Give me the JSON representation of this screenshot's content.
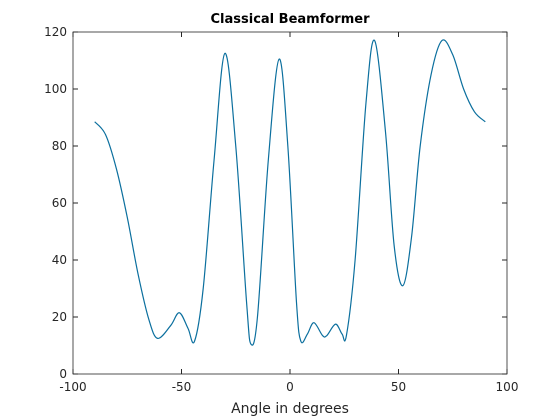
{
  "chart_data": {
    "type": "line",
    "title": "Classical Beamformer",
    "xlabel": "Angle in degrees",
    "x": [
      -90,
      -85,
      -80,
      -75,
      -70,
      -65,
      -61,
      -55,
      -51,
      -47,
      -44,
      -40,
      -35,
      -30,
      -25,
      -20,
      -18,
      -15,
      -10,
      -5,
      -1,
      3,
      5,
      8,
      11,
      15,
      17,
      21,
      24,
      26,
      30,
      35,
      39,
      44,
      48,
      52,
      56,
      60,
      65,
      70,
      75,
      80,
      85,
      90
    ],
    "series": [
      {
        "name": "Classical Beamformer",
        "color": "#0b6f9e",
        "values": [
          88.5,
          84,
          72,
          55,
          35,
          19,
          12.5,
          17,
          21.5,
          16,
          11.5,
          30,
          75,
          112.5,
          80,
          25,
          10.5,
          20,
          75,
          110.5,
          80,
          25,
          11.5,
          14,
          18,
          13.5,
          13.5,
          17.5,
          14,
          13.5,
          40,
          95,
          117,
          85,
          45,
          31,
          48,
          80,
          105,
          117,
          112,
          100,
          92,
          88.5
        ]
      }
    ],
    "xlim": [
      -100,
      100
    ],
    "xticks": [
      -100,
      -50,
      0,
      50,
      100
    ],
    "ylim": [
      0,
      120
    ],
    "yticks": [
      0,
      20,
      40,
      60,
      80,
      100,
      120
    ]
  }
}
